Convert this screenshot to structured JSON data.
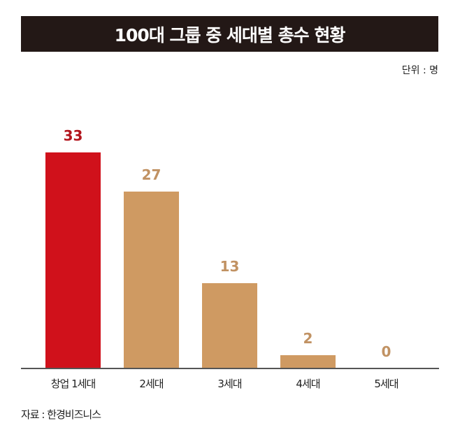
{
  "header": {
    "title": "100대 그룹 중 세대별 총수 현황",
    "unit": "단위 : 명"
  },
  "footer": {
    "source": "자료 : 한경비즈니스"
  },
  "colors": {
    "title_bg": "#231816",
    "highlight": "#d0111b",
    "highlight_label": "#b3151d",
    "bar": "#cf9a62",
    "bar_label": "#c19263",
    "axis": "#555555"
  },
  "chart_data": {
    "type": "bar",
    "title": "100대 그룹 중 세대별 총수 현황",
    "subtitle": "단위 : 명",
    "categories": [
      "창업 1세대",
      "2세대",
      "3세대",
      "4세대",
      "5세대"
    ],
    "values": [
      33,
      27,
      13,
      2,
      0
    ],
    "value_labels": [
      "33",
      "27",
      "13",
      "2",
      "0"
    ],
    "xlabel": "",
    "ylabel": "명",
    "ylim": [
      0,
      33
    ],
    "grid": false,
    "legend": null,
    "highlight_index": 0,
    "annotations": [
      "자료 : 한경비즈니스"
    ]
  }
}
